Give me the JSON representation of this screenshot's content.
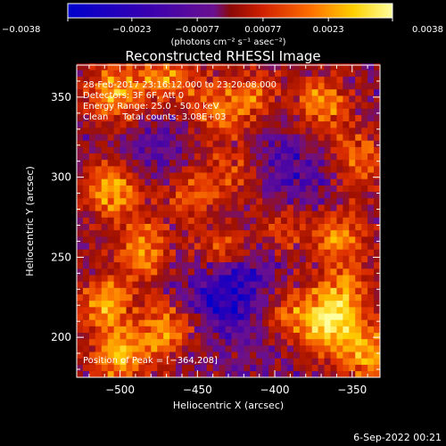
{
  "chart_data": {
    "type": "heatmap",
    "title": "Reconstructed RHESSI Image",
    "xlabel": "Heliocentric X (arcsec)",
    "ylabel": "Heliocentric Y (arcsec)",
    "xlim": [
      -528,
      -332
    ],
    "ylim": [
      175,
      370
    ],
    "xticks": [
      -500,
      -450,
      -400,
      -350
    ],
    "yticks": [
      200,
      250,
      300,
      350
    ],
    "xtick_labels": [
      "−500",
      "−450",
      "−400",
      "−350"
    ],
    "yticks_labels": [
      "200",
      "250",
      "300",
      "350"
    ],
    "grid": false,
    "colorbar": {
      "range": [
        -0.0038,
        0.0038
      ],
      "ticks": [
        -0.0038,
        -0.0023,
        -0.00077,
        0.00077,
        0.0023,
        0.0038
      ],
      "tick_labels": [
        "−0.0038",
        "−0.0023",
        "−0.00077",
        "0.00077",
        "0.0023",
        "0.0038"
      ],
      "units_label": "(photons cm⁻² s⁻¹ asec⁻²)",
      "colormap": [
        "#0000cc",
        "#3a00b0",
        "#6a1090",
        "#a01000",
        "#e03000",
        "#ff8000",
        "#ffd000",
        "#ffffa0"
      ]
    },
    "annotations": [
      "28-Feb-2017 23:16:12.000 to 23:20:08.000",
      "Detectors: 3F 6F, Att 0",
      "Energy Range: 25.0 - 50.0 keV",
      "Clean     Total counts: 3.08E+03"
    ],
    "peak_label": "Position of Peak = [−364,208]",
    "peak": [
      -364,
      208
    ],
    "pixel_size_arcsec": 4,
    "hotspots": [
      {
        "x": -504,
        "y": 352,
        "amp": 0.0034
      },
      {
        "x": -470,
        "y": 362,
        "amp": 0.003
      },
      {
        "x": -440,
        "y": 340,
        "amp": 0.0026
      },
      {
        "x": -505,
        "y": 292,
        "amp": 0.0033
      },
      {
        "x": -455,
        "y": 292,
        "amp": 0.0024
      },
      {
        "x": -425,
        "y": 305,
        "amp": 0.0022
      },
      {
        "x": -415,
        "y": 350,
        "amp": 0.0025
      },
      {
        "x": -370,
        "y": 345,
        "amp": 0.003
      },
      {
        "x": -345,
        "y": 310,
        "amp": 0.0026
      },
      {
        "x": -360,
        "y": 265,
        "amp": 0.0029
      },
      {
        "x": -485,
        "y": 255,
        "amp": 0.003
      },
      {
        "x": -435,
        "y": 255,
        "amp": 0.0027
      },
      {
        "x": -395,
        "y": 270,
        "amp": 0.0022
      },
      {
        "x": -510,
        "y": 222,
        "amp": 0.0031
      },
      {
        "x": -470,
        "y": 205,
        "amp": 0.0029
      },
      {
        "x": -500,
        "y": 188,
        "amp": 0.0034
      },
      {
        "x": -390,
        "y": 215,
        "amp": 0.0023
      },
      {
        "x": -364,
        "y": 208,
        "amp": 0.0038
      },
      {
        "x": -340,
        "y": 190,
        "amp": 0.0031
      },
      {
        "x": -355,
        "y": 230,
        "amp": 0.0025
      }
    ],
    "cold_regions": [
      {
        "x": -430,
        "y": 232,
        "amp": -0.0024
      },
      {
        "x": -385,
        "y": 290,
        "amp": -0.0012
      },
      {
        "x": -470,
        "y": 320,
        "amp": -0.001
      },
      {
        "x": -410,
        "y": 320,
        "amp": -0.0008
      }
    ]
  },
  "footer": {
    "date": "6-Sep-2022 00:21"
  }
}
